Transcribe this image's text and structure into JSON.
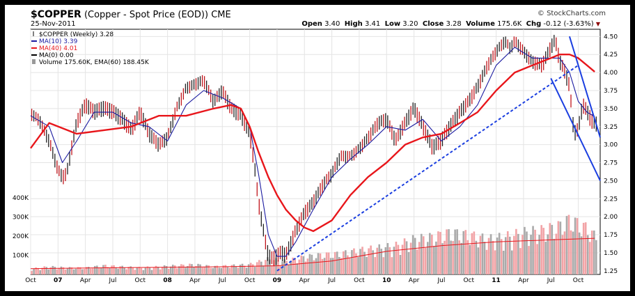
{
  "header": {
    "symbol": "$COPPER",
    "description": "(Copper - Spot Price (EOD))",
    "exchange": "CME",
    "date": "25-Nov-2011",
    "credit": "© StockCharts.com",
    "ohlc": {
      "open_label": "Open",
      "open": "3.40",
      "high_label": "High",
      "high": "3.41",
      "low_label": "Low",
      "low": "3.20",
      "close_label": "Close",
      "close": "3.28",
      "volume_label": "Volume",
      "volume": "175.6K",
      "chg_label": "Chg",
      "chg": "-0.12 (-3.63%)"
    }
  },
  "colors": {
    "price": "#222222",
    "ma10": "#1a1aa0",
    "ma40": "#e8161b",
    "ma0": "#000000",
    "trend": "#1a3ee0",
    "volume_up": "#aaaaaa",
    "volume_down": "#f2a3a6",
    "ema60": "#e8161b"
  },
  "chart_data": {
    "type": "line",
    "title": "$COPPER (Copper - Spot Price (EOD))",
    "interval": "Weekly",
    "legend": [
      {
        "label": "$COPPER (Weekly) 3.28",
        "color": "#222222"
      },
      {
        "label": "MA(10) 3.39",
        "color": "#1a1aa0"
      },
      {
        "label": "MA(40) 4.01",
        "color": "#e8161b"
      },
      {
        "label": "MA(0) 0.00",
        "color": "#000000"
      },
      {
        "label": "Volume 175.60K, EMA(60) 188.45K",
        "color": "#888888"
      }
    ],
    "legend_position": "top-left",
    "x_ticks": [
      "Oct",
      "07",
      "Apr",
      "Jul",
      "Oct",
      "08",
      "Apr",
      "Jul",
      "Oct",
      "09",
      "Apr",
      "Jul",
      "Oct",
      "10",
      "Apr",
      "Jul",
      "Oct",
      "11",
      "Apr",
      "Jul",
      "Oct"
    ],
    "x_ticks_bold": [
      "07",
      "08",
      "09",
      "10",
      "11"
    ],
    "y_ticks": [
      "1.25",
      "1.50",
      "1.75",
      "2.00",
      "2.25",
      "2.50",
      "2.75",
      "3.00",
      "3.25",
      "3.50",
      "3.75",
      "4.00",
      "4.25",
      "4.50"
    ],
    "ylim": [
      1.2,
      4.6
    ],
    "volume_ticks": [
      "100K",
      "200K",
      "300K",
      "400K"
    ],
    "volume_lim": [
      0,
      450
    ],
    "x_start": 2006.75,
    "x_end": 2011.95,
    "price": {
      "t": [
        2006.75,
        2006.83,
        2006.92,
        2007.0,
        2007.04,
        2007.08,
        2007.13,
        2007.17,
        2007.25,
        2007.33,
        2007.42,
        2007.5,
        2007.58,
        2007.67,
        2007.75,
        2007.83,
        2007.92,
        2008.0,
        2008.08,
        2008.17,
        2008.25,
        2008.33,
        2008.42,
        2008.5,
        2008.58,
        2008.67,
        2008.75,
        2008.79,
        2008.83,
        2008.88,
        2008.92,
        2008.96,
        2009.0,
        2009.04,
        2009.08,
        2009.17,
        2009.25,
        2009.33,
        2009.42,
        2009.5,
        2009.58,
        2009.67,
        2009.75,
        2009.83,
        2009.92,
        2010.0,
        2010.08,
        2010.17,
        2010.25,
        2010.33,
        2010.42,
        2010.5,
        2010.58,
        2010.67,
        2010.75,
        2010.83,
        2010.92,
        2011.0,
        2011.08,
        2011.13,
        2011.17,
        2011.25,
        2011.33,
        2011.42,
        2011.5,
        2011.54,
        2011.58,
        2011.63,
        2011.67,
        2011.71,
        2011.75,
        2011.79,
        2011.83,
        2011.88,
        2011.9
      ],
      "close": [
        3.45,
        3.35,
        3.05,
        2.65,
        2.55,
        2.6,
        3.0,
        3.3,
        3.55,
        3.45,
        3.5,
        3.45,
        3.35,
        3.2,
        3.45,
        3.15,
        3.0,
        3.1,
        3.5,
        3.8,
        3.85,
        3.9,
        3.6,
        3.75,
        3.5,
        3.4,
        3.15,
        2.75,
        2.2,
        1.75,
        1.45,
        1.4,
        1.45,
        1.5,
        1.45,
        1.8,
        2.05,
        2.2,
        2.45,
        2.6,
        2.85,
        2.85,
        2.95,
        3.1,
        3.3,
        3.35,
        3.05,
        3.3,
        3.5,
        3.25,
        2.95,
        3.05,
        3.25,
        3.45,
        3.6,
        3.8,
        4.1,
        4.3,
        4.45,
        4.35,
        4.45,
        4.3,
        4.15,
        4.1,
        4.35,
        4.45,
        4.15,
        4.0,
        3.8,
        3.15,
        3.2,
        3.55,
        3.45,
        3.3,
        3.28
      ]
    },
    "ma10": {
      "t": [
        2006.75,
        2006.92,
        2007.04,
        2007.17,
        2007.33,
        2007.5,
        2007.67,
        2007.83,
        2008.0,
        2008.17,
        2008.33,
        2008.5,
        2008.67,
        2008.75,
        2008.83,
        2008.92,
        2009.0,
        2009.08,
        2009.17,
        2009.33,
        2009.5,
        2009.67,
        2009.83,
        2010.0,
        2010.17,
        2010.33,
        2010.5,
        2010.67,
        2010.83,
        2011.0,
        2011.17,
        2011.33,
        2011.5,
        2011.58,
        2011.67,
        2011.75,
        2011.83,
        2011.9
      ],
      "values": [
        3.4,
        3.25,
        2.75,
        3.05,
        3.45,
        3.45,
        3.3,
        3.25,
        3.05,
        3.55,
        3.75,
        3.65,
        3.5,
        3.25,
        2.6,
        1.75,
        1.45,
        1.45,
        1.65,
        2.1,
        2.55,
        2.8,
        3.0,
        3.25,
        3.2,
        3.35,
        3.05,
        3.25,
        3.55,
        4.1,
        4.35,
        4.2,
        4.2,
        4.2,
        4.0,
        3.6,
        3.45,
        3.39
      ]
    },
    "ma40": {
      "t": [
        2006.75,
        2006.92,
        2007.17,
        2007.42,
        2007.67,
        2007.92,
        2008.17,
        2008.42,
        2008.58,
        2008.67,
        2008.75,
        2008.83,
        2008.92,
        2009.0,
        2009.08,
        2009.17,
        2009.25,
        2009.33,
        2009.5,
        2009.67,
        2009.83,
        2010.0,
        2010.17,
        2010.33,
        2010.5,
        2010.67,
        2010.83,
        2011.0,
        2011.17,
        2011.33,
        2011.5,
        2011.58,
        2011.67,
        2011.75,
        2011.83,
        2011.9
      ],
      "values": [
        2.95,
        3.3,
        3.15,
        3.2,
        3.25,
        3.4,
        3.4,
        3.5,
        3.55,
        3.5,
        3.25,
        2.9,
        2.55,
        2.3,
        2.1,
        1.95,
        1.85,
        1.8,
        1.95,
        2.3,
        2.55,
        2.75,
        3.0,
        3.1,
        3.15,
        3.3,
        3.45,
        3.75,
        4.0,
        4.1,
        4.2,
        4.25,
        4.25,
        4.2,
        4.1,
        4.01
      ]
    },
    "volume": {
      "t": [
        2006.75,
        2006.92,
        2007.08,
        2007.25,
        2007.42,
        2007.58,
        2007.75,
        2007.92,
        2008.08,
        2008.25,
        2008.42,
        2008.58,
        2008.75,
        2008.92,
        2009.08,
        2009.25,
        2009.42,
        2009.58,
        2009.75,
        2009.92,
        2010.08,
        2010.25,
        2010.42,
        2010.58,
        2010.75,
        2010.92,
        2011.08,
        2011.25,
        2011.42,
        2011.58,
        2011.67,
        2011.75,
        2011.83,
        2011.9
      ],
      "values": [
        25,
        35,
        30,
        30,
        40,
        35,
        30,
        35,
        40,
        45,
        35,
        40,
        45,
        70,
        60,
        80,
        90,
        95,
        110,
        120,
        130,
        160,
        170,
        190,
        180,
        160,
        170,
        190,
        200,
        220,
        250,
        230,
        210,
        175.6
      ]
    },
    "ema60": {
      "t": [
        2006.75,
        2007.5,
        2008.5,
        2009.0,
        2009.5,
        2010.0,
        2010.5,
        2011.0,
        2011.5,
        2011.9
      ],
      "values": [
        30,
        35,
        40,
        45,
        70,
        120,
        150,
        170,
        180,
        188.45
      ]
    },
    "trendlines": [
      {
        "style": "dashed",
        "from": [
          2009.0,
          1.25
        ],
        "to": [
          2011.75,
          4.1
        ]
      },
      {
        "style": "solid",
        "from": [
          2011.5,
          3.92
        ],
        "to": [
          2011.95,
          2.5
        ]
      },
      {
        "style": "solid",
        "from": [
          2011.67,
          4.5
        ],
        "to": [
          2011.95,
          3.1
        ]
      }
    ]
  }
}
